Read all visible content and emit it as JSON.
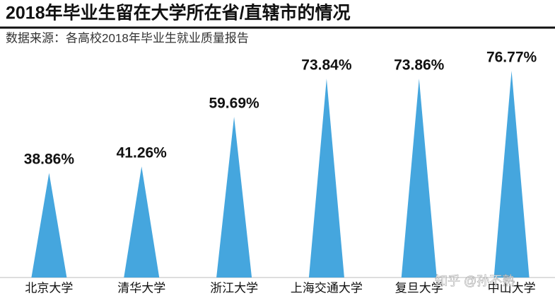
{
  "chart_data": {
    "type": "spike",
    "title": "2018年毕业生留在大学所在省/直辖市的情况",
    "subtitle": "数据来源：各高校2018年毕业生就业质量报告",
    "categories": [
      "北京大学",
      "清华大学",
      "浙江大学",
      "上海交通大学",
      "复旦大学",
      "中山大学"
    ],
    "values": [
      38.86,
      41.26,
      59.69,
      73.84,
      73.86,
      76.77
    ],
    "value_labels": [
      "38.86%",
      "41.26%",
      "59.69%",
      "73.84%",
      "73.86%",
      "76.77%"
    ],
    "color": "#45a6de",
    "watermark": "知乎 @孙不熟"
  }
}
